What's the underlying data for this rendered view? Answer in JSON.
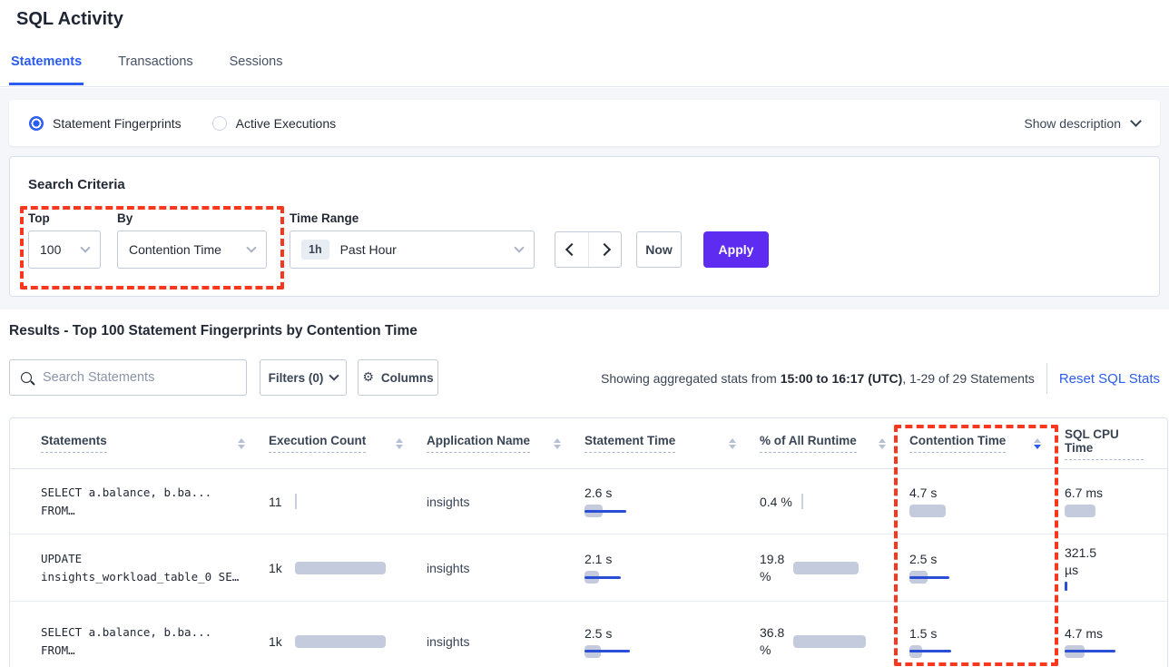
{
  "header": {
    "title": "SQL Activity"
  },
  "tabs": [
    {
      "label": "Statements",
      "active": true
    },
    {
      "label": "Transactions",
      "active": false
    },
    {
      "label": "Sessions",
      "active": false
    }
  ],
  "view_toggle": {
    "options": [
      {
        "label": "Statement Fingerprints",
        "selected": true
      },
      {
        "label": "Active Executions",
        "selected": false
      }
    ],
    "show_description_label": "Show description"
  },
  "search_criteria": {
    "title": "Search Criteria",
    "top_label": "Top",
    "top_value": "100",
    "by_label": "By",
    "by_value": "Contention Time",
    "time_range_label": "Time Range",
    "time_badge": "1h",
    "time_value": "Past Hour",
    "now_label": "Now",
    "apply_label": "Apply"
  },
  "results": {
    "title": "Results - Top 100 Statement Fingerprints by Contention Time",
    "search_placeholder": "Search Statements",
    "filters_label": "Filters (0)",
    "columns_label": "Columns",
    "stats_prefix": "Showing aggregated stats from ",
    "stats_bold": "15:00 to 16:17 (UTC)",
    "stats_suffix": ", 1-29 of 29 Statements",
    "reset_label": "Reset SQL Stats"
  },
  "table": {
    "columns": [
      {
        "label": "Statements",
        "sort": "none"
      },
      {
        "label": "Execution Count",
        "sort": "none"
      },
      {
        "label": "Application Name",
        "sort": "none"
      },
      {
        "label": "Statement Time",
        "sort": "none"
      },
      {
        "label": "% of All Runtime",
        "sort": "none"
      },
      {
        "label": "Contention Time",
        "sort": "desc"
      },
      {
        "label": "SQL CPU Time",
        "sort": "hidden"
      }
    ],
    "rows": [
      {
        "statement_lines": [
          "SELECT a.balance, b.ba...",
          "FROM…"
        ],
        "execution_count": {
          "value": "11",
          "tick": true
        },
        "application_name": "insights",
        "statement_time": {
          "value": "2.6 s",
          "bar": 20,
          "line": 46
        },
        "pct_runtime": {
          "value": "0.4 %",
          "tick": true
        },
        "contention_time": {
          "value": "4.7 s",
          "bar": 40,
          "line": 0
        },
        "sql_cpu_time": {
          "value": "6.7 ms",
          "bar": 34,
          "line": 0
        }
      },
      {
        "statement_lines": [
          "UPDATE",
          "insights_workload_table_0 SE…"
        ],
        "execution_count": {
          "value": "1k",
          "bar": 100
        },
        "application_name": "insights",
        "statement_time": {
          "value": "2.1 s",
          "bar": 16,
          "line": 40
        },
        "pct_runtime": {
          "lines": [
            "19.8",
            "%"
          ],
          "bar": 72
        },
        "contention_time": {
          "value": "2.5 s",
          "bar": 20,
          "line": 44
        },
        "sql_cpu_time": {
          "lines": [
            "321.5",
            "µs"
          ],
          "blue_tick": true
        }
      },
      {
        "statement_lines": [
          "SELECT a.balance, b.ba...",
          "FROM…"
        ],
        "execution_count": {
          "value": "1k",
          "bar": 100
        },
        "application_name": "insights",
        "statement_time": {
          "value": "2.5 s",
          "bar": 18,
          "line": 50
        },
        "pct_runtime": {
          "lines": [
            "36.8",
            "%"
          ],
          "bar": 80
        },
        "contention_time": {
          "value": "1.5 s",
          "bar": 14,
          "line": 46
        },
        "sql_cpu_time": {
          "value": "4.7 ms",
          "bar": 22,
          "line": 56
        }
      }
    ]
  },
  "colors": {
    "accent": "#2b5cf0",
    "apply_purple": "#5e2bf0",
    "bar_gray": "#c3cbdd",
    "bar_blue": "#2a4fd6",
    "annotation_red": "#f8371f"
  }
}
